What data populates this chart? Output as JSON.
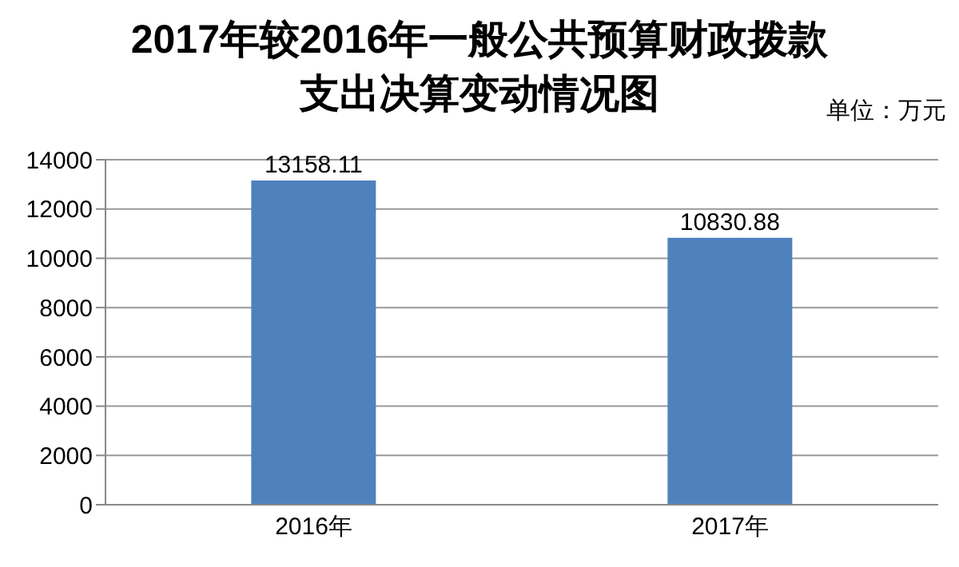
{
  "chart_data": {
    "type": "bar",
    "title": "2017年较2016年一般公共预算财政拨款支出决算变动情况图",
    "annotations": [
      "单位：万元"
    ],
    "categories": [
      "2016年",
      "2017年"
    ],
    "values": [
      13158.11,
      10830.88
    ],
    "color": "#4f81bd",
    "ylim": [
      0,
      14000
    ],
    "yticks": [
      0,
      2000,
      4000,
      6000,
      8000,
      10000,
      12000,
      14000
    ],
    "grid": "y",
    "data_labels": true
  }
}
